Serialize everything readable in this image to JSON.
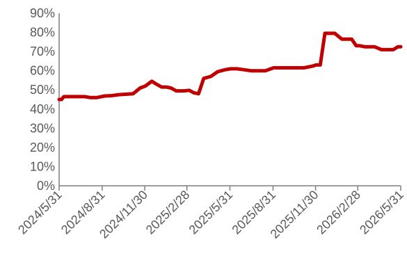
{
  "chart_data": {
    "type": "line",
    "title": "",
    "xlabel": "",
    "ylabel": "",
    "grid": false,
    "legend": "none",
    "colors": {
      "series": "#c00000",
      "axis": "#7f7f7f",
      "tick_text": "#595959"
    },
    "y_axis": {
      "ylim": [
        0,
        90
      ],
      "ticks": [
        0,
        10,
        20,
        30,
        40,
        50,
        60,
        70,
        80,
        90
      ],
      "tick_labels": [
        "0%",
        "10%",
        "20%",
        "30%",
        "40%",
        "50%",
        "60%",
        "70%",
        "80%",
        "90%"
      ]
    },
    "x_axis": {
      "xlim": [
        "2024-05-31",
        "2026-05-31"
      ],
      "ticks": [
        "2024-05-31",
        "2024-08-31",
        "2024-11-30",
        "2025-02-28",
        "2025-05-31",
        "2025-08-31",
        "2025-11-30",
        "2026-02-28",
        "2026-05-31"
      ],
      "tick_labels": [
        "2024/5/31",
        "2024/8/31",
        "2024/11/30",
        "2025/2/28",
        "2025/5/31",
        "2025/8/31",
        "2025/11/30",
        "2026/2/28",
        "2026/5/31"
      ]
    },
    "series": [
      {
        "x": [
          "2024-05-31",
          "2024-06-05",
          "2024-06-10",
          "2024-06-20",
          "2024-07-01",
          "2024-07-15",
          "2024-07-25",
          "2024-08-05",
          "2024-08-20",
          "2024-09-05",
          "2024-09-20",
          "2024-10-05",
          "2024-10-25",
          "2024-11-05",
          "2024-11-20",
          "2024-12-01",
          "2024-12-15",
          "2024-12-25",
          "2025-01-05",
          "2025-01-15",
          "2025-01-25",
          "2025-02-05",
          "2025-02-15",
          "2025-02-22",
          "2025-03-05",
          "2025-03-15",
          "2025-03-25",
          "2025-04-05",
          "2025-04-20",
          "2025-05-05",
          "2025-05-20",
          "2025-06-01",
          "2025-06-15",
          "2025-07-01",
          "2025-07-15",
          "2025-08-01",
          "2025-08-15",
          "2025-09-01",
          "2025-09-15",
          "2025-10-01",
          "2025-10-15",
          "2025-10-25",
          "2025-11-05",
          "2025-11-25",
          "2025-12-01",
          "2025-12-10",
          "2025-12-20",
          "2026-01-01",
          "2026-01-10",
          "2026-01-25",
          "2026-02-01",
          "2026-02-05",
          "2026-02-15",
          "2026-02-25",
          "2026-03-05",
          "2026-03-15",
          "2026-03-25",
          "2026-04-05",
          "2026-04-20",
          "2026-05-05",
          "2026-05-15",
          "2026-05-25",
          "2026-05-31"
        ],
        "y": [
          45.0,
          45.0,
          46.5,
          46.5,
          46.5,
          46.5,
          46.5,
          46.0,
          46.0,
          46.8,
          47.0,
          47.5,
          47.8,
          48.0,
          51.0,
          52.0,
          54.5,
          53.0,
          51.5,
          51.5,
          51.0,
          49.5,
          49.5,
          49.5,
          49.8,
          48.5,
          48.0,
          56.0,
          57.0,
          59.5,
          60.5,
          61.0,
          61.0,
          60.5,
          60.0,
          60.0,
          60.0,
          61.5,
          61.5,
          61.5,
          61.5,
          61.5,
          61.5,
          62.5,
          63.0,
          63.0,
          79.5,
          79.5,
          79.5,
          76.5,
          76.5,
          76.5,
          76.5,
          73.0,
          73.0,
          72.5,
          72.5,
          72.5,
          71.0,
          71.0,
          71.0,
          72.5,
          72.5
        ]
      }
    ]
  }
}
